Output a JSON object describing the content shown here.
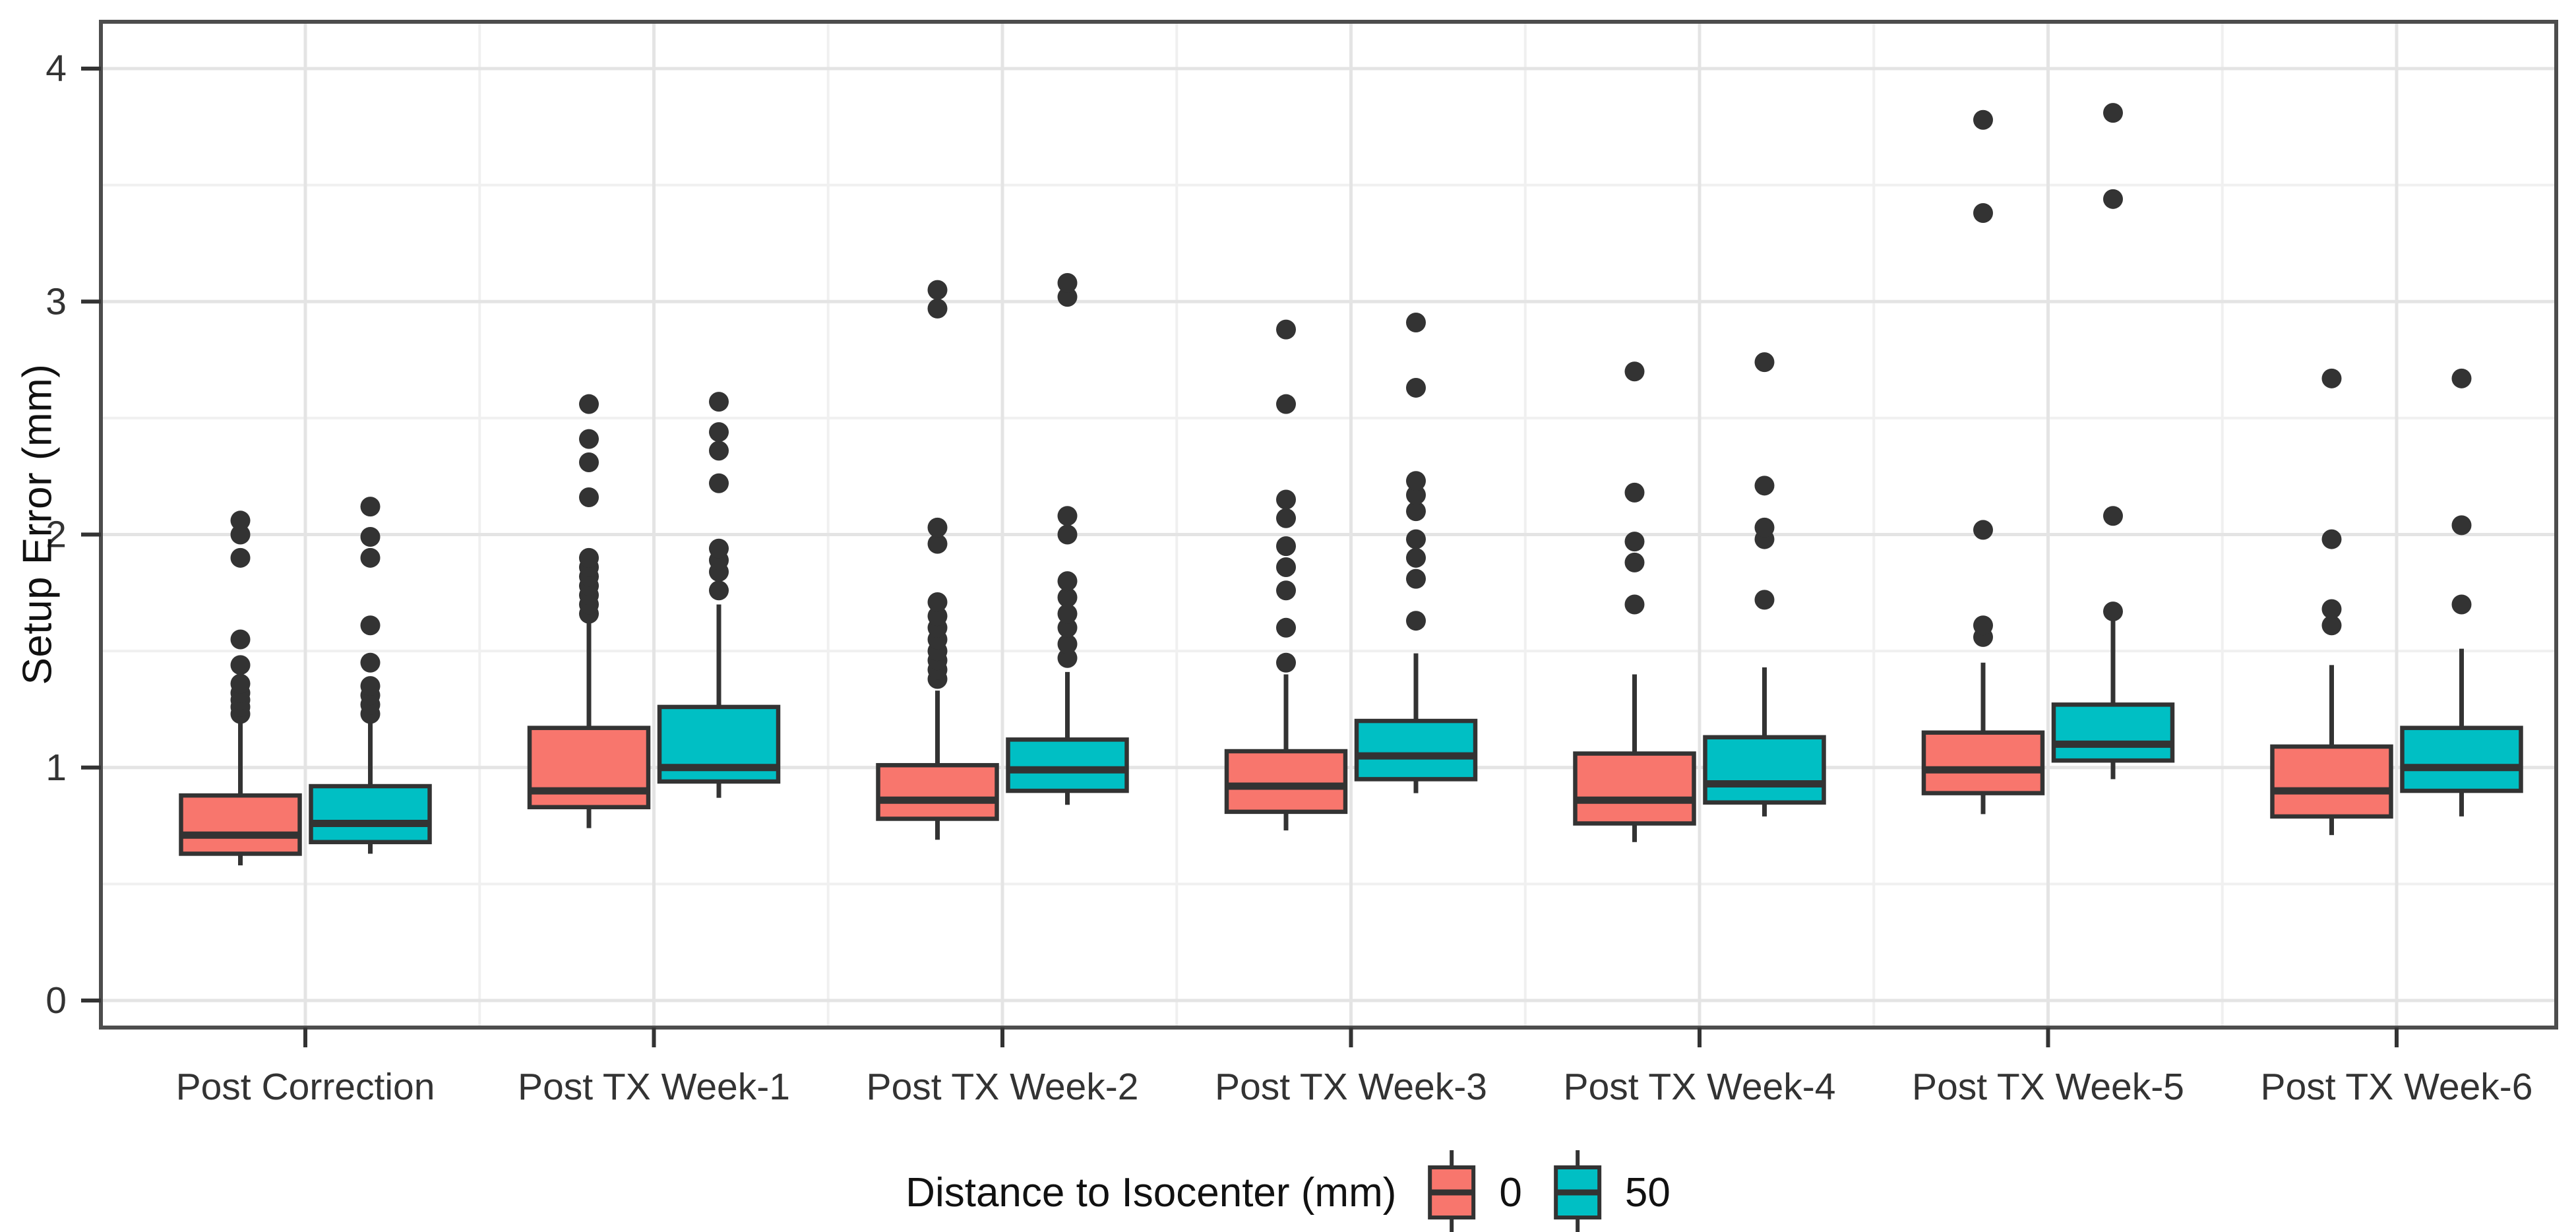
{
  "y_axis": {
    "label": "Setup Error (mm)",
    "ticks": [
      "0",
      "1",
      "2",
      "3",
      "4"
    ]
  },
  "legend": {
    "title": "Distance to Isocenter (mm)",
    "entries": [
      {
        "label": "0",
        "color": "#F8766D"
      },
      {
        "label": "50",
        "color": "#00BFC4"
      }
    ]
  },
  "colors": {
    "box_outline": "#333333",
    "outlier_dot": "#333333",
    "panel_border": "#4d4d4d",
    "grid_major": "#e4e4e4",
    "grid_minor": "#f0f0f0",
    "tick_mark": "#333333",
    "tick_text": "#333333",
    "background": "#ffffff"
  },
  "chart_data": {
    "type": "boxplot",
    "title": "",
    "xlabel": "",
    "ylabel": "Setup Error (mm)",
    "ylim": [
      -0.12,
      4.22
    ],
    "yticks": [
      0,
      1,
      2,
      3,
      4
    ],
    "y_minor_ticks": [
      0.5,
      1.5,
      2.5,
      3.5
    ],
    "grid": "horizontal and vertical light-gray major gridlines with fainter minor gridlines on white panel, dark panel border",
    "legend_position": "bottom",
    "legend_title": "Distance to Isocenter (mm)",
    "categories": [
      "Post Correction",
      "Post TX Week-1",
      "Post TX Week-2",
      "Post TX Week-3",
      "Post TX Week-4",
      "Post TX Week-5",
      "Post TX Week-6"
    ],
    "series": [
      {
        "name": "0",
        "color": "#F8766D",
        "boxes": [
          {
            "low": 0.58,
            "q1": 0.63,
            "median": 0.71,
            "q3": 0.88,
            "high": 1.21,
            "outliers": [
              1.23,
              1.26,
              1.29,
              1.32,
              1.36,
              1.44,
              1.55,
              1.9,
              2.0,
              2.06
            ]
          },
          {
            "low": 0.74,
            "q1": 0.83,
            "median": 0.9,
            "q3": 1.17,
            "high": 1.63,
            "outliers": [
              1.66,
              1.7,
              1.74,
              1.78,
              1.82,
              1.86,
              1.9,
              2.16,
              2.31,
              2.41,
              2.56
            ]
          },
          {
            "low": 0.69,
            "q1": 0.78,
            "median": 0.86,
            "q3": 1.01,
            "high": 1.33,
            "outliers": [
              1.38,
              1.42,
              1.46,
              1.5,
              1.55,
              1.6,
              1.65,
              1.71,
              1.96,
              2.03,
              2.97,
              3.05
            ]
          },
          {
            "low": 0.73,
            "q1": 0.81,
            "median": 0.92,
            "q3": 1.07,
            "high": 1.4,
            "outliers": [
              1.45,
              1.6,
              1.76,
              1.86,
              1.95,
              2.07,
              2.15,
              2.56,
              2.88
            ]
          },
          {
            "low": 0.68,
            "q1": 0.76,
            "median": 0.86,
            "q3": 1.06,
            "high": 1.4,
            "outliers": [
              1.7,
              1.88,
              1.97,
              2.18,
              2.7
            ]
          },
          {
            "low": 0.8,
            "q1": 0.89,
            "median": 0.99,
            "q3": 1.15,
            "high": 1.45,
            "outliers": [
              1.56,
              1.61,
              2.02,
              3.38,
              3.78
            ]
          },
          {
            "low": 0.71,
            "q1": 0.79,
            "median": 0.9,
            "q3": 1.09,
            "high": 1.44,
            "outliers": [
              1.61,
              1.68,
              1.98,
              2.67
            ]
          }
        ]
      },
      {
        "name": "50",
        "color": "#00BFC4",
        "boxes": [
          {
            "low": 0.63,
            "q1": 0.68,
            "median": 0.76,
            "q3": 0.92,
            "high": 1.22,
            "outliers": [
              1.23,
              1.27,
              1.31,
              1.35,
              1.45,
              1.61,
              1.9,
              1.99,
              2.12
            ]
          },
          {
            "low": 0.87,
            "q1": 0.94,
            "median": 1.0,
            "q3": 1.26,
            "high": 1.7,
            "outliers": [
              1.76,
              1.84,
              1.89,
              1.94,
              2.22,
              2.36,
              2.44,
              2.57
            ]
          },
          {
            "low": 0.84,
            "q1": 0.9,
            "median": 0.99,
            "q3": 1.12,
            "high": 1.41,
            "outliers": [
              1.47,
              1.53,
              1.6,
              1.66,
              1.73,
              1.8,
              2.0,
              2.08,
              3.02,
              3.08
            ]
          },
          {
            "low": 0.89,
            "q1": 0.95,
            "median": 1.05,
            "q3": 1.2,
            "high": 1.49,
            "outliers": [
              1.63,
              1.81,
              1.9,
              1.98,
              2.1,
              2.17,
              2.23,
              2.63,
              2.91
            ]
          },
          {
            "low": 0.79,
            "q1": 0.85,
            "median": 0.93,
            "q3": 1.13,
            "high": 1.43,
            "outliers": [
              1.72,
              1.98,
              2.03,
              2.21,
              2.74
            ]
          },
          {
            "low": 0.95,
            "q1": 1.03,
            "median": 1.1,
            "q3": 1.27,
            "high": 1.64,
            "outliers": [
              1.67,
              2.08,
              3.44,
              3.81
            ]
          },
          {
            "low": 0.79,
            "q1": 0.9,
            "median": 1.0,
            "q3": 1.17,
            "high": 1.51,
            "outliers": [
              1.7,
              2.04,
              2.67
            ]
          }
        ]
      }
    ]
  }
}
